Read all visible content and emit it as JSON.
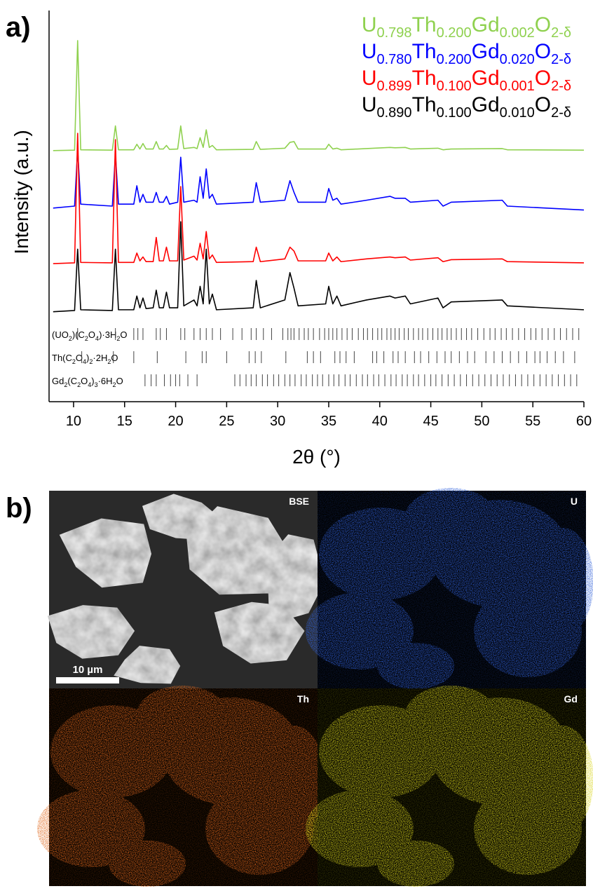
{
  "figure": {
    "panel_a_label": "a)",
    "panel_b_label": "b)",
    "map_labels": [
      "BSE",
      "U",
      "Th",
      "Gd"
    ],
    "scale_bar": "10 µm"
  },
  "chart_data": {
    "type": "line",
    "xlabel": "2θ (°)",
    "ylabel": "Intensity (a.u.)",
    "xlim": [
      7.6,
      60
    ],
    "xticks": [
      10,
      15,
      20,
      25,
      30,
      35,
      40,
      45,
      50,
      55,
      60
    ],
    "ylim": [
      0,
      100
    ],
    "x": [
      8,
      10.1,
      10.4,
      10.7,
      13.8,
      14.1,
      14.4,
      15.9,
      16.2,
      16.5,
      16.8,
      17.1,
      17.8,
      18.1,
      18.4,
      18.8,
      19.1,
      19.4,
      20.2,
      20.5,
      20.8,
      21.8,
      22.1,
      22.4,
      22.7,
      23.0,
      23.3,
      23.6,
      24,
      27.6,
      27.9,
      28.3,
      30.7,
      31.2,
      31.6,
      32,
      34.7,
      35.0,
      35.4,
      35.8,
      36.2,
      38.7,
      41,
      41.5,
      42.5,
      43,
      45.7,
      46.2,
      47,
      52,
      52.5,
      60
    ],
    "series": [
      {
        "name_parts": [
          "U",
          "0.798",
          "Th",
          "0.200",
          "Gd",
          "0.002",
          "O",
          "2-δ"
        ],
        "color": "#8fd14f",
        "values": [
          64.2,
          64.3,
          92.3,
          64.4,
          64.3,
          70.5,
          64.4,
          64.4,
          65.8,
          64.6,
          66,
          64.6,
          64.6,
          66.5,
          64.6,
          64.6,
          65.5,
          64.5,
          64.6,
          70.5,
          64.7,
          65,
          64.7,
          67.5,
          65,
          69.5,
          65,
          65.5,
          64.4,
          64.5,
          66.5,
          64.5,
          64.8,
          66.3,
          66.5,
          64.6,
          64.6,
          65.8,
          64.6,
          64.8,
          64.4,
          64.7,
          65,
          64.9,
          65,
          64.6,
          64.8,
          64.4,
          64.6,
          64.7,
          64.4,
          64.3
        ]
      },
      {
        "name_parts": [
          "U",
          "0.780",
          "Th",
          "0.200",
          "Gd",
          "0.020",
          "O",
          "2-δ"
        ],
        "color": "#0000ff",
        "values": [
          49.5,
          50,
          64.5,
          50.5,
          50,
          63.3,
          50.5,
          50.5,
          55.2,
          51,
          53,
          51,
          51,
          53.5,
          51,
          51,
          52.5,
          50.5,
          51,
          62.5,
          51,
          51.5,
          51,
          57.5,
          52,
          59.5,
          52,
          53,
          50.5,
          51,
          56,
          51,
          51.5,
          56.5,
          53.5,
          51,
          51,
          54.5,
          51.5,
          52,
          50.5,
          51.5,
          52.5,
          52,
          52,
          51,
          51.5,
          50,
          51,
          51.5,
          50,
          49
        ]
      },
      {
        "name_parts": [
          "U",
          "0.899",
          "Th",
          "0.100",
          "Gd",
          "0.001",
          "O",
          "2-δ"
        ],
        "color": "#ff0000",
        "values": [
          35.3,
          35.5,
          68.6,
          35.6,
          35.5,
          67,
          35.6,
          35.6,
          38,
          36,
          37,
          35.8,
          35.8,
          42,
          36,
          36,
          39.5,
          36,
          36,
          55,
          36.2,
          37.2,
          36.2,
          40.5,
          36.5,
          43.5,
          36.5,
          37.5,
          35.6,
          35.8,
          39.5,
          35.8,
          36.5,
          39.5,
          38.5,
          36,
          36,
          38,
          36,
          37,
          35.8,
          36.5,
          37,
          36.8,
          37,
          36.2,
          36.8,
          35.8,
          36.3,
          36.5,
          35.8,
          35.5
        ]
      },
      {
        "name_parts": [
          "U",
          "0.890",
          "Th",
          "0.100",
          "Gd",
          "0.010",
          "O",
          "2-δ"
        ],
        "color": "#000000",
        "values": [
          23,
          23.3,
          39,
          23.5,
          23.3,
          39,
          23.5,
          23.5,
          27,
          24,
          26.5,
          23.8,
          24,
          28.5,
          24,
          24,
          28,
          24,
          24,
          46,
          24.5,
          26,
          24.5,
          29.5,
          25,
          39,
          25,
          27.5,
          23.5,
          24,
          31,
          24,
          26,
          33,
          29,
          24.5,
          25,
          29.5,
          25,
          27,
          24.5,
          26,
          27,
          26.5,
          27,
          25,
          26.5,
          24,
          25.5,
          26,
          24.5,
          23.5
        ]
      }
    ],
    "references": [
      {
        "label_parts": [
          "(UO",
          "2",
          ")(C",
          "2",
          "O",
          "4",
          ")·3H",
          "2",
          "O"
        ],
        "positions": [
          10.4,
          14.1,
          15.9,
          16.3,
          16.8,
          18.1,
          18.5,
          19.1,
          20.5,
          20.9,
          21.8,
          22.4,
          23.0,
          23.6,
          24.4,
          25.6,
          26.5,
          27.4,
          27.9,
          28.6,
          29.4,
          30.5,
          31.0,
          31.3,
          31.6,
          32.1,
          32.6,
          33.0,
          33.5,
          34.1,
          34.6,
          35.0,
          35.4,
          35.8,
          36.3,
          36.8,
          37.3,
          37.9,
          38.4,
          38.8,
          39.3,
          39.8,
          40.2,
          40.7,
          41.1,
          41.5,
          41.9,
          42.4,
          42.8,
          43.3,
          43.8,
          44.2,
          44.7,
          45.2,
          45.7,
          46.1,
          46.6,
          47.0,
          47.5,
          48.0,
          48.5,
          49.0,
          49.6,
          50.2,
          50.8,
          51.3,
          51.9,
          52.4,
          53.0,
          53.6,
          54.2,
          54.8,
          55.3,
          55.9,
          56.5,
          57.1,
          57.7,
          58.3,
          58.9,
          59.5
        ]
      },
      {
        "label_parts": [
          "Th(C",
          "2",
          "O",
          "4",
          ")",
          "2",
          "·2H",
          "2",
          "O"
        ],
        "positions": [
          10.8,
          13.9,
          15.9,
          18.2,
          21.0,
          22.6,
          23.0,
          25.0,
          27.2,
          27.8,
          28.4,
          30.8,
          32.9,
          33.5,
          34.2,
          35.6,
          36.1,
          36.7,
          37.5,
          39.3,
          39.7,
          40.4,
          41.3,
          41.8,
          42.5,
          43.4,
          44.0,
          44.8,
          45.6,
          46.4,
          47.0,
          47.8,
          48.6,
          49.3,
          50.4,
          51.2,
          52.0,
          52.8,
          53.6,
          54.4,
          55.2,
          55.7,
          56.4,
          57.2,
          58.0,
          59.1
        ]
      },
      {
        "label_parts": [
          "Gd",
          "2",
          "(C",
          "2",
          "O",
          "4",
          ")",
          "3",
          "·6H",
          "2",
          "O"
        ],
        "positions": [
          17.0,
          17.6,
          18.1,
          18.9,
          19.5,
          20.0,
          20.4,
          21.2,
          22.1,
          25.8,
          26.3,
          26.9,
          27.4,
          27.9,
          28.5,
          29.0,
          29.6,
          30.1,
          30.7,
          31.2,
          31.7,
          32.3,
          32.8,
          33.4,
          33.9,
          34.4,
          35.0,
          35.5,
          36.0,
          36.6,
          37.1,
          37.7,
          38.3,
          38.8,
          39.4,
          39.9,
          40.5,
          41.1,
          41.6,
          42.2,
          42.7,
          43.3,
          43.8,
          44.4,
          45.0,
          45.5,
          46.1,
          46.7,
          47.3,
          47.9,
          48.5,
          49.1,
          49.7,
          50.3,
          50.9,
          51.5,
          52.1,
          52.7,
          53.3,
          53.9,
          54.5,
          55.1,
          55.7,
          56.3,
          56.9,
          57.5,
          58.1,
          58.7,
          59.3
        ]
      }
    ]
  }
}
